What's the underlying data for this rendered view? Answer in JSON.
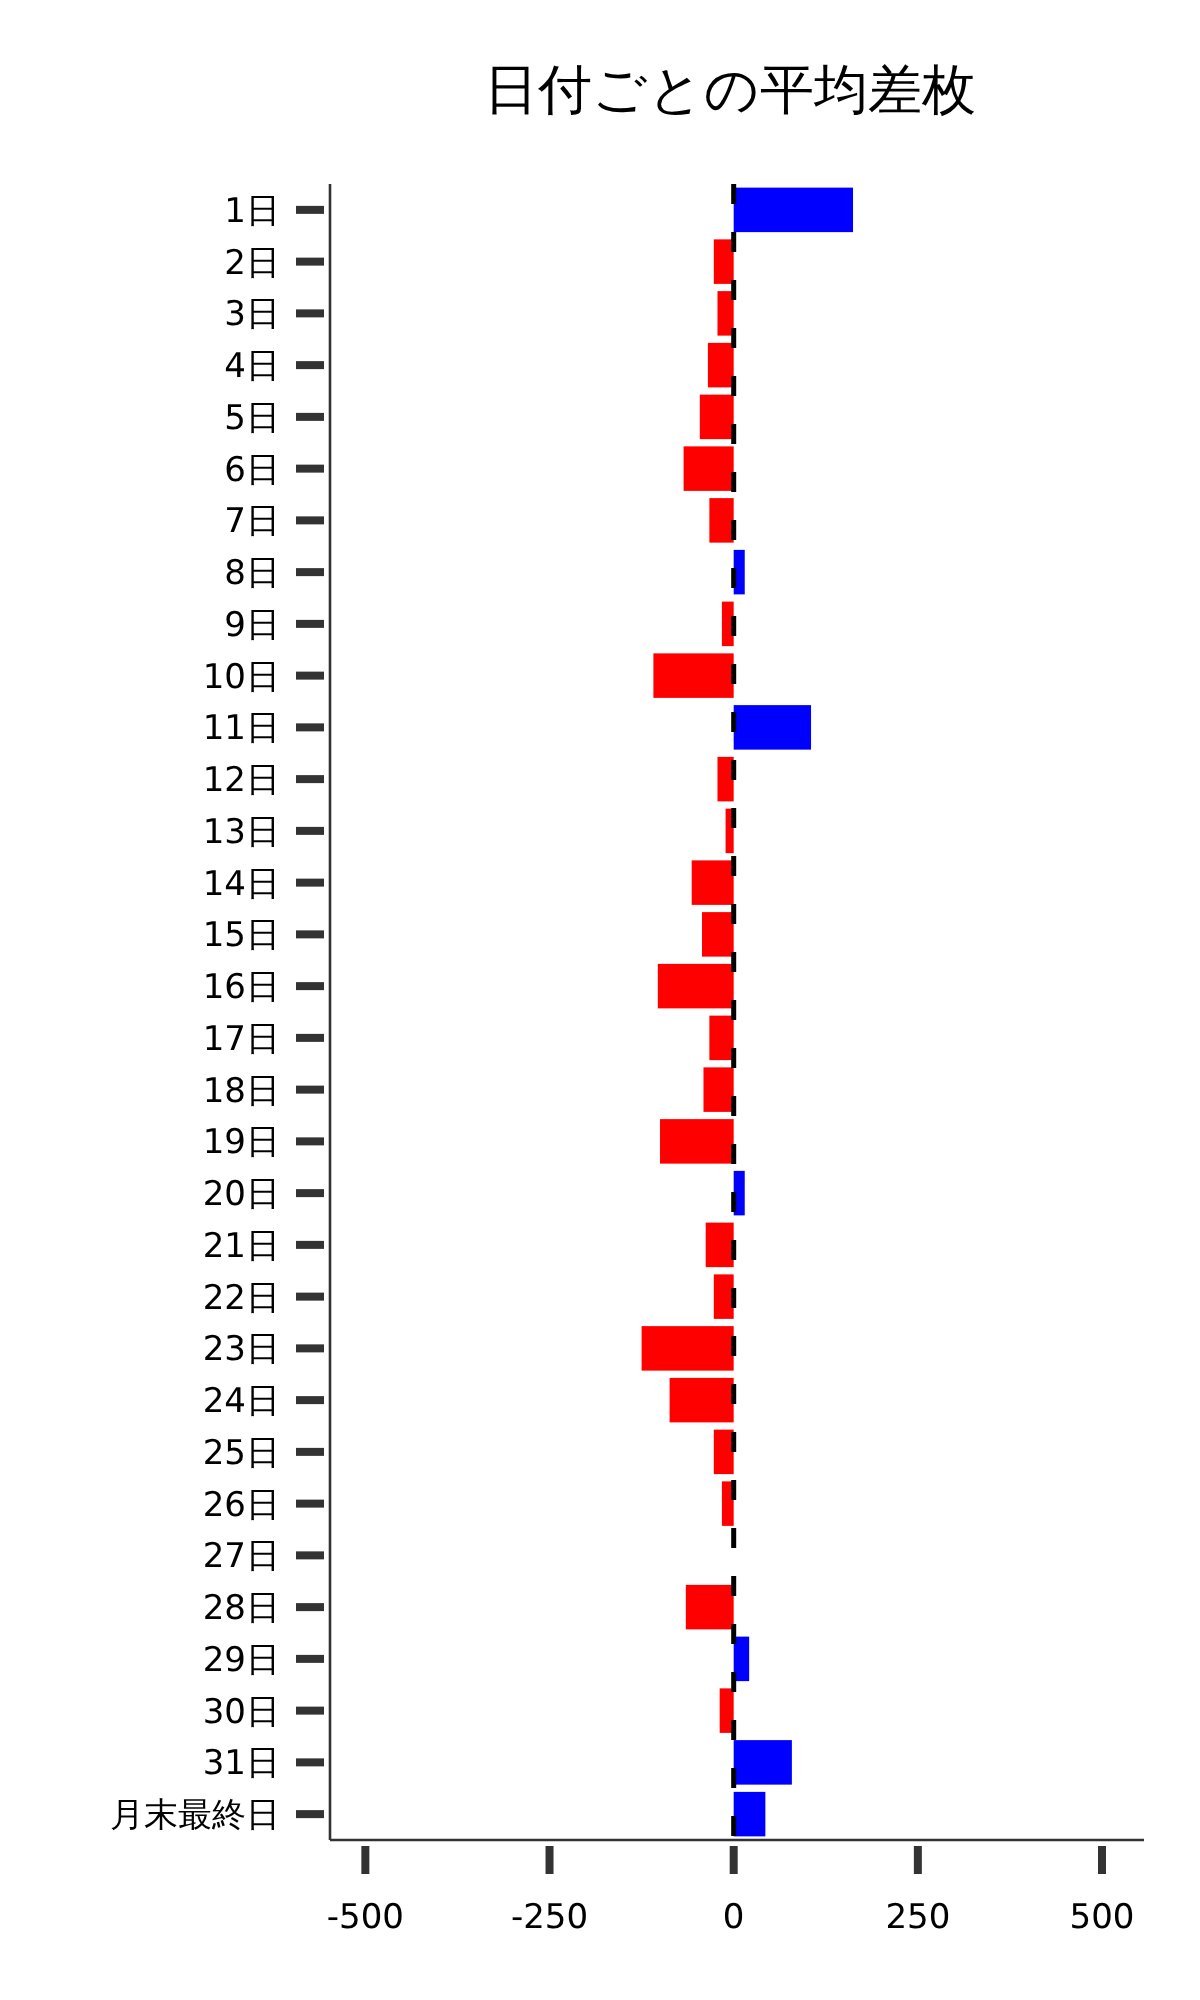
{
  "chart_data": {
    "type": "bar",
    "orientation": "horizontal",
    "title": "日付ごとの平均差枚",
    "categories": [
      "1日",
      "2日",
      "3日",
      "4日",
      "5日",
      "6日",
      "7日",
      "8日",
      "9日",
      "10日",
      "11日",
      "12日",
      "13日",
      "14日",
      "15日",
      "16日",
      "17日",
      "18日",
      "19日",
      "20日",
      "21日",
      "22日",
      "23日",
      "24日",
      "25日",
      "26日",
      "27日",
      "28日",
      "29日",
      "30日",
      "31日",
      "月末最終日"
    ],
    "values": [
      162,
      -27,
      -22,
      -35,
      -46,
      -68,
      -33,
      15,
      -16,
      -109,
      105,
      -22,
      -11,
      -57,
      -43,
      -103,
      -33,
      -41,
      -100,
      15,
      -38,
      -27,
      -125,
      -87,
      -27,
      -16,
      0,
      -65,
      21,
      -19,
      79,
      43
    ],
    "colors": [
      "#0000ff",
      "#ff0000",
      "#ff0000",
      "#ff0000",
      "#ff0000",
      "#ff0000",
      "#ff0000",
      "#0000ff",
      "#ff0000",
      "#ff0000",
      "#0000ff",
      "#ff0000",
      "#ff0000",
      "#ff0000",
      "#ff0000",
      "#ff0000",
      "#ff0000",
      "#ff0000",
      "#ff0000",
      "#0000ff",
      "#ff0000",
      "#ff0000",
      "#ff0000",
      "#ff0000",
      "#ff0000",
      "#ff0000",
      "#ff0000",
      "#ff0000",
      "#0000ff",
      "#ff0000",
      "#0000ff",
      "#0000ff"
    ],
    "xlim": [
      -548,
      557
    ],
    "xticks": [
      -500,
      -250,
      0,
      250,
      500
    ],
    "ref_lines": [
      {
        "axis": "x",
        "value": 0,
        "color": "#000000",
        "line_style": "dashed"
      }
    ],
    "grid": false
  }
}
